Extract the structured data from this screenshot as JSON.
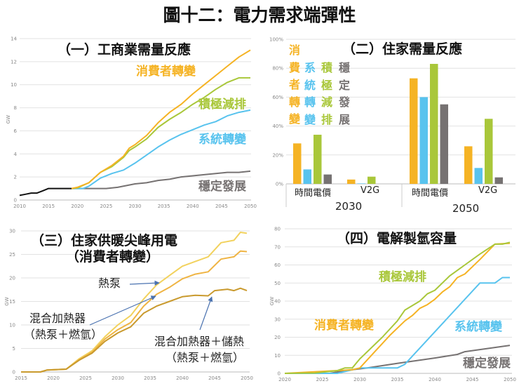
{
  "title": "圖十二：電力需求端彈性",
  "colors": {
    "orange": "#F5B324",
    "green": "#A9C73A",
    "blue": "#58C3EE",
    "gray": "#767272",
    "black": "#111111",
    "arrow": "#4A72B0",
    "heatpump": "#F2D25E",
    "hybrid": "#EFB443",
    "hybrid_storage": "#C99A2E"
  },
  "chart_data": [
    {
      "type": "line",
      "title": "（一）工商業需量反應",
      "ylabel": "GW",
      "xlim": [
        2010,
        2050
      ],
      "ylim": [
        0,
        14
      ],
      "xticks": [
        "2010",
        "2015",
        "2020",
        "2025",
        "2030",
        "2035",
        "2040",
        "2045",
        "2050"
      ],
      "yticks": [
        "0",
        "2",
        "4",
        "6",
        "8",
        "10",
        "12",
        "14"
      ],
      "grid": true,
      "series": [
        {
          "color_key": "black",
          "x": [
            2010,
            2011,
            2012,
            2013,
            2014,
            2015,
            2019
          ],
          "y": [
            0.4,
            0.5,
            0.6,
            0.6,
            0.8,
            1.0,
            1.0
          ]
        },
        {
          "name": "穩定發展",
          "color_key": "gray",
          "x": [
            2019,
            2025,
            2027,
            2030,
            2032,
            2034,
            2036,
            2038,
            2040,
            2042,
            2044,
            2046,
            2048,
            2050
          ],
          "y": [
            1.0,
            1.0,
            1.1,
            1.4,
            1.5,
            1.7,
            1.8,
            2.0,
            2.1,
            2.2,
            2.3,
            2.4,
            2.4,
            2.5
          ]
        },
        {
          "name": "系統轉變",
          "color_key": "blue",
          "x": [
            2019,
            2021,
            2022,
            2024,
            2026,
            2028,
            2030,
            2032,
            2034,
            2036,
            2038,
            2040,
            2042,
            2044,
            2046,
            2048,
            2050
          ],
          "y": [
            1.0,
            1.0,
            1.2,
            1.9,
            2.3,
            2.6,
            3.2,
            3.9,
            4.6,
            5.2,
            5.7,
            6.1,
            6.5,
            6.8,
            7.3,
            7.6,
            7.8
          ]
        },
        {
          "name": "積極減排",
          "color_key": "green",
          "x": [
            2019,
            2020,
            2022,
            2024,
            2026,
            2028,
            2029,
            2030,
            2032,
            2034,
            2036,
            2038,
            2040,
            2042,
            2044,
            2046,
            2048,
            2050
          ],
          "y": [
            1.0,
            1.05,
            1.5,
            2.4,
            2.9,
            3.7,
            4.3,
            4.6,
            5.3,
            6.3,
            7.0,
            7.6,
            8.3,
            8.9,
            9.6,
            10.2,
            10.6,
            10.6
          ]
        },
        {
          "name": "消費者轉變",
          "color_key": "orange",
          "x": [
            2019,
            2020,
            2022,
            2024,
            2026,
            2028,
            2029,
            2030,
            2032,
            2034,
            2036,
            2038,
            2040,
            2042,
            2044,
            2046,
            2048,
            2050
          ],
          "y": [
            1.0,
            1.1,
            1.5,
            2.4,
            3.0,
            3.8,
            4.5,
            4.8,
            5.6,
            6.7,
            7.6,
            8.3,
            9.2,
            10.0,
            10.8,
            11.6,
            12.4,
            13.0
          ]
        }
      ]
    },
    {
      "type": "bar",
      "title": "（二）住家需量反應",
      "ylim": [
        0,
        100
      ],
      "yticks": [
        "0%",
        "20%",
        "40%",
        "60%",
        "80%",
        "100%"
      ],
      "grid": true,
      "groups": [
        {
          "year": "2030",
          "categories": [
            {
              "label": "時間電價",
              "values": [
                28,
                10,
                34,
                6.5
              ]
            },
            {
              "label": "V2G",
              "values": [
                3,
                0.3,
                5,
                0
              ]
            }
          ]
        },
        {
          "year": "2050",
          "categories": [
            {
              "label": "時間電價",
              "values": [
                73,
                60,
                83,
                55
              ]
            },
            {
              "label": "V2G",
              "values": [
                26,
                11,
                45,
                4.5
              ]
            }
          ]
        }
      ],
      "series": [
        {
          "name": "消費者轉變",
          "color_key": "orange"
        },
        {
          "name": "系統轉變",
          "color_key": "blue"
        },
        {
          "name": "積極減排",
          "color_key": "green"
        },
        {
          "name": "穩定發展",
          "color_key": "gray"
        }
      ]
    },
    {
      "type": "line",
      "title": "（三）住家供暖尖峰用電",
      "subtitle": "（消費者轉變）",
      "ylabel": "GW",
      "xlim": [
        2015,
        2050
      ],
      "ylim": [
        0,
        30
      ],
      "xticks": [
        "2015",
        "2020",
        "2025",
        "2030",
        "2035",
        "2040",
        "2045",
        "2050"
      ],
      "yticks": [
        "0",
        "5",
        "10",
        "15",
        "20",
        "25",
        "30"
      ],
      "grid": true,
      "series": [
        {
          "name": "熱泵",
          "color_key": "heatpump",
          "x": [
            2015,
            2018,
            2019,
            2022,
            2024,
            2026,
            2028,
            2030,
            2032,
            2034,
            2036,
            2038,
            2040,
            2042,
            2044,
            2046,
            2048,
            2049,
            2050
          ],
          "y": [
            0,
            0,
            0.4,
            0.6,
            2.8,
            4.5,
            7.5,
            10,
            12,
            15.5,
            18.5,
            20.5,
            22.5,
            23.5,
            24.5,
            27.5,
            28,
            29.7,
            29.5
          ]
        },
        {
          "name": "混合加熱器（熱泵＋燃氫）",
          "color_key": "hybrid",
          "x": [
            2015,
            2018,
            2019,
            2022,
            2024,
            2026,
            2028,
            2030,
            2032,
            2034,
            2036,
            2038,
            2040,
            2042,
            2044,
            2046,
            2048,
            2049,
            2050
          ],
          "y": [
            0,
            0,
            0.4,
            0.6,
            2.6,
            4.2,
            7,
            9,
            10.5,
            14,
            16.5,
            18,
            19.8,
            20.8,
            21.3,
            24,
            24.5,
            25.7,
            25.6
          ]
        },
        {
          "name": "混合加熱器＋儲熱（熱泵＋燃氫）",
          "color_key": "hybrid_storage",
          "x": [
            2015,
            2018,
            2019,
            2022,
            2024,
            2026,
            2028,
            2030,
            2032,
            2034,
            2036,
            2038,
            2040,
            2042,
            2044,
            2045,
            2047,
            2048,
            2049,
            2050
          ],
          "y": [
            0,
            0,
            0.4,
            0.6,
            2.5,
            4,
            6.5,
            8.3,
            9.6,
            12.5,
            14,
            15,
            16,
            16.3,
            16.2,
            17.3,
            17.6,
            17.3,
            17.8,
            17.3
          ]
        }
      ],
      "annotations": {
        "heatpump": "熱泵",
        "hybrid_line1": "混合加熱器",
        "hybrid_line2": "（熱泵＋燃氫）",
        "storage_line1": "混合加熱器＋儲熱",
        "storage_line2": "（熱泵＋燃氫）"
      }
    },
    {
      "type": "line",
      "title": "（四）電解製氫容量",
      "ylabel": "GW",
      "xlim": [
        2020,
        2050
      ],
      "ylim": [
        0,
        80
      ],
      "xticks": [
        "2020",
        "2025",
        "2030",
        "2035",
        "2040",
        "2045",
        "2050"
      ],
      "yticks": [
        "0",
        "10",
        "20",
        "30",
        "40",
        "50",
        "60",
        "70",
        "80"
      ],
      "grid": true,
      "series": [
        {
          "name": "穩定發展",
          "color_key": "gray",
          "x": [
            2020,
            2026,
            2028,
            2031,
            2035,
            2040,
            2043,
            2044,
            2050
          ],
          "y": [
            0,
            0,
            1.5,
            3,
            5.5,
            8.5,
            10.5,
            12,
            15.5
          ]
        },
        {
          "name": "系統轉變",
          "color_key": "blue",
          "x": [
            2020,
            2027,
            2029,
            2030,
            2035,
            2036,
            2046,
            2048,
            2049,
            2050
          ],
          "y": [
            0,
            0,
            2,
            3,
            3,
            5,
            50,
            50,
            53,
            53
          ]
        },
        {
          "name": "消費者轉變",
          "color_key": "orange",
          "x": [
            2020,
            2029,
            2030,
            2032,
            2034,
            2036,
            2037,
            2038,
            2039,
            2040,
            2041,
            2042,
            2043,
            2044,
            2046,
            2048,
            2050
          ],
          "y": [
            0,
            2,
            3,
            12,
            21,
            29,
            32,
            36,
            38,
            41,
            45,
            48,
            53,
            55,
            63,
            71.5,
            72
          ]
        },
        {
          "name": "積極減排",
          "color_key": "green",
          "x": [
            2020,
            2024,
            2027,
            2028,
            2029,
            2030,
            2033,
            2035,
            2036,
            2038,
            2039,
            2040,
            2042,
            2044,
            2046,
            2048,
            2049,
            2050
          ],
          "y": [
            0,
            0.2,
            1.5,
            3,
            3,
            8,
            20,
            29,
            35,
            40,
            44,
            46,
            54,
            60,
            66,
            71.5,
            71.5,
            72.5
          ]
        }
      ]
    }
  ]
}
